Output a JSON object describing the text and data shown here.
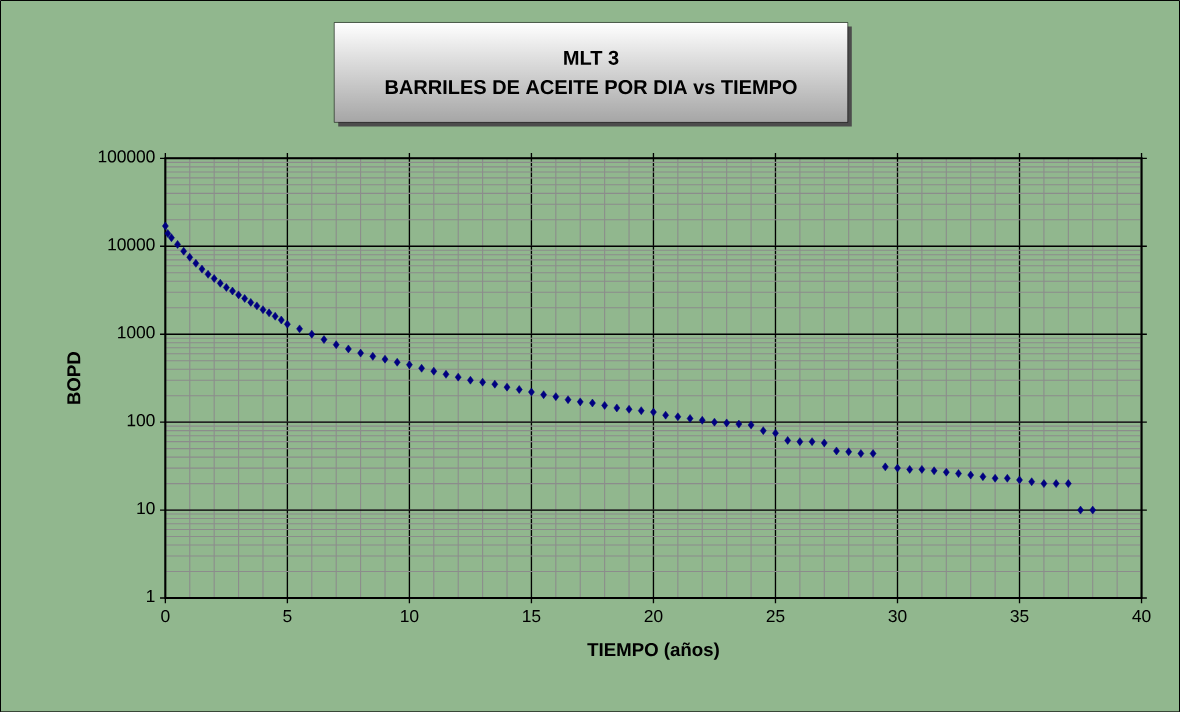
{
  "chart_data": {
    "type": "scatter",
    "title": "MLT 3",
    "subtitle": "BARRILES DE ACEITE POR DIA vs TIEMPO",
    "xlabel": "TIEMPO (años)",
    "ylabel": "BOPD",
    "x": [
      0,
      0.1,
      0.25,
      0.5,
      0.75,
      1,
      1.25,
      1.5,
      1.75,
      2,
      2.25,
      2.5,
      2.75,
      3,
      3.25,
      3.5,
      3.75,
      4,
      4.25,
      4.5,
      4.75,
      5,
      5.5,
      6,
      6.5,
      7,
      7.5,
      8,
      8.5,
      9,
      9.5,
      10,
      10.5,
      11,
      11.5,
      12,
      12.5,
      13,
      13.5,
      14,
      14.5,
      15,
      15.5,
      16,
      16.5,
      17,
      17.5,
      18,
      18.5,
      19,
      19.5,
      20,
      20.5,
      21,
      21.5,
      22,
      22.5,
      23,
      23.5,
      24,
      24.5,
      25,
      25.5,
      26,
      26.5,
      27,
      27.5,
      28,
      28.5,
      29,
      29.5,
      30,
      30.5,
      31,
      31.5,
      32,
      32.5,
      33,
      33.5,
      34,
      34.5,
      35,
      35.5,
      36,
      36.5,
      37,
      37.5,
      38
    ],
    "series": [
      {
        "color": "#000080",
        "values": [
          17000,
          14000,
          12500,
          10500,
          8800,
          7500,
          6400,
          5500,
          4800,
          4300,
          3800,
          3400,
          3100,
          2800,
          2550,
          2300,
          2100,
          1900,
          1750,
          1600,
          1450,
          1300,
          1150,
          1000,
          870,
          760,
          680,
          610,
          560,
          520,
          480,
          450,
          410,
          380,
          350,
          325,
          300,
          285,
          270,
          250,
          235,
          220,
          205,
          195,
          180,
          170,
          165,
          155,
          145,
          140,
          135,
          130,
          120,
          115,
          110,
          105,
          100,
          98,
          95,
          93,
          80,
          75,
          62,
          60,
          60,
          58,
          47,
          46,
          44,
          44,
          31,
          30,
          29,
          29,
          28,
          27,
          26,
          25,
          24,
          23,
          23,
          22,
          21,
          20,
          20,
          20,
          10,
          10
        ]
      }
    ],
    "xlim": [
      0,
      40
    ],
    "xticks": [
      0,
      5,
      10,
      15,
      20,
      25,
      30,
      35,
      40
    ],
    "ylim": [
      1,
      100000
    ],
    "yticks": [
      1,
      10,
      100,
      1000,
      10000,
      100000
    ],
    "log": "y",
    "grid": true,
    "marker": "diamond"
  }
}
